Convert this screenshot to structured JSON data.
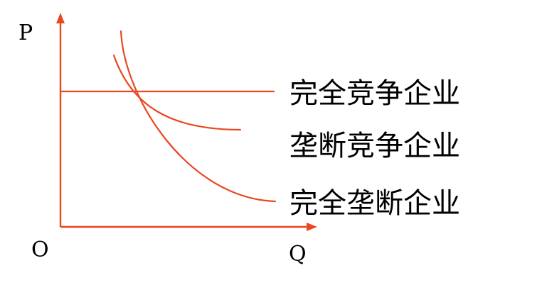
{
  "colors": {
    "accent": "#e8471f",
    "text": "#000000",
    "background": "#ffffff"
  },
  "axes": {
    "y_label": "P",
    "x_label": "Q",
    "origin_label": "O"
  },
  "curves": [
    {
      "id": "perfect-competition",
      "label": "完全竞争企业",
      "shape": "horizontal line"
    },
    {
      "id": "monopolistic-competition",
      "label": "垄断竞争企业",
      "shape": "flatter downward curve"
    },
    {
      "id": "pure-monopoly",
      "label": "完全垄断企业",
      "shape": "steeper downward curve"
    }
  ]
}
